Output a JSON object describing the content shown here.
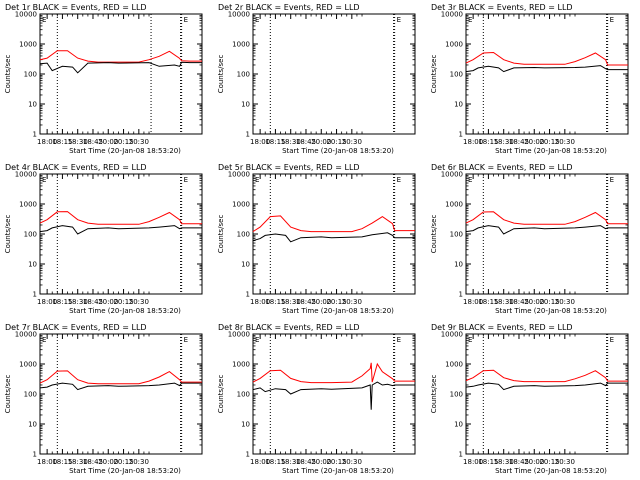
{
  "colors": {
    "events": "#000000",
    "lld": "#ff0000",
    "axis": "#000000",
    "background": "#ffffff"
  },
  "chart_data": [
    {
      "type": "line",
      "title": "Det 1r BLACK = Events, RED = LLD",
      "xlabel": "Start Time (20-Jan-08 18:53:20)",
      "ylabel": "Counts/sec",
      "yscale": "log",
      "ylim": [
        1,
        10000
      ],
      "xlim": [
        "17:53",
        "20:32"
      ],
      "x_ticks": [
        "18:00",
        "18:15",
        "18:30",
        "18:45",
        "20:00",
        "20:15",
        "20:30"
      ],
      "y_ticks": [
        "1",
        "10",
        "100",
        "1000",
        "10000"
      ],
      "vlines": [
        "18:10",
        "19:42",
        "20:11",
        "20:12"
      ],
      "marker_label": "E",
      "series": [
        {
          "name": "RED = LLD",
          "color": "#ff0000",
          "x": [
            "17:53",
            "18:00",
            "18:10",
            "18:20",
            "18:30",
            "18:40",
            "18:50",
            "19:00",
            "19:10",
            "19:30",
            "19:40",
            "19:50",
            "20:00",
            "20:10",
            "20:12",
            "20:20",
            "20:32"
          ],
          "y": [
            300,
            340,
            600,
            600,
            340,
            270,
            250,
            250,
            250,
            250,
            300,
            390,
            570,
            330,
            275,
            270,
            270
          ]
        },
        {
          "name": "BLACK = Events",
          "color": "#000000",
          "x": [
            "17:53",
            "18:00",
            "18:05",
            "18:15",
            "18:25",
            "18:30",
            "18:40",
            "19:00",
            "19:10",
            "19:40",
            "19:50",
            "20:05",
            "20:10",
            "20:12",
            "20:20",
            "20:32"
          ],
          "y": [
            220,
            230,
            130,
            180,
            170,
            110,
            230,
            240,
            230,
            240,
            180,
            200,
            180,
            245,
            240,
            240
          ]
        }
      ]
    },
    {
      "type": "line",
      "title": "Det 2r BLACK = Events, RED = LLD",
      "xlabel": "Start Time (20-Jan-08 18:53:20)",
      "ylabel": "Counts/sec",
      "yscale": "log",
      "ylim": [
        1,
        10000
      ],
      "xlim": [
        "17:53",
        "20:32"
      ],
      "x_ticks": [
        "18:00",
        "18:15",
        "18:30",
        "18:45",
        "20:00",
        "20:15",
        "20:30"
      ],
      "y_ticks": [
        "1",
        "10",
        "100",
        "1000",
        "10000"
      ],
      "vlines": [
        "18:10",
        "20:11",
        "20:12"
      ],
      "marker_label": "E",
      "series": []
    },
    {
      "type": "line",
      "title": "Det 3r BLACK = Events, RED = LLD",
      "xlabel": "Start Time (20-Jan-08 18:53:20)",
      "ylabel": "Counts/sec",
      "yscale": "log",
      "ylim": [
        1,
        10000
      ],
      "xlim": [
        "17:53",
        "20:32"
      ],
      "x_ticks": [
        "18:00",
        "18:15",
        "18:30",
        "18:45",
        "20:00",
        "20:15",
        "20:30"
      ],
      "y_ticks": [
        "1",
        "10",
        "100",
        "1000",
        "10000"
      ],
      "vlines": [
        "18:10",
        "20:11",
        "20:12"
      ],
      "marker_label": "E",
      "series": [
        {
          "name": "RED = LLD",
          "color": "#ff0000",
          "x": [
            "17:53",
            "18:00",
            "18:10",
            "18:20",
            "18:30",
            "18:40",
            "18:50",
            "19:00",
            "19:10",
            "19:30",
            "19:40",
            "19:50",
            "20:00",
            "20:10",
            "20:12",
            "20:20",
            "20:32"
          ],
          "y": [
            230,
            300,
            500,
            520,
            300,
            230,
            210,
            210,
            210,
            210,
            260,
            350,
            500,
            300,
            200,
            200,
            200
          ]
        },
        {
          "name": "BLACK = Events",
          "color": "#000000",
          "x": [
            "17:53",
            "18:00",
            "18:05",
            "18:15",
            "18:25",
            "18:30",
            "18:40",
            "19:00",
            "19:10",
            "19:40",
            "19:50",
            "20:05",
            "20:10",
            "20:12",
            "20:20",
            "20:32"
          ],
          "y": [
            120,
            130,
            160,
            180,
            160,
            120,
            160,
            165,
            160,
            165,
            170,
            190,
            150,
            140,
            140,
            140
          ]
        }
      ]
    },
    {
      "type": "line",
      "title": "Det 4r BLACK = Events, RED = LLD",
      "xlabel": "Start Time (20-Jan-08 18:53:20)",
      "ylabel": "Counts/sec",
      "yscale": "log",
      "ylim": [
        1,
        10000
      ],
      "xlim": [
        "17:53",
        "20:32"
      ],
      "x_ticks": [
        "18:00",
        "18:15",
        "18:30",
        "18:45",
        "20:00",
        "20:15",
        "20:30"
      ],
      "y_ticks": [
        "1",
        "10",
        "100",
        "1000",
        "10000"
      ],
      "vlines": [
        "18:10",
        "20:11",
        "20:12"
      ],
      "marker_label": "E",
      "series": [
        {
          "name": "RED = LLD",
          "color": "#ff0000",
          "x": [
            "17:53",
            "18:00",
            "18:10",
            "18:20",
            "18:30",
            "18:40",
            "18:50",
            "19:00",
            "19:10",
            "19:30",
            "19:40",
            "19:50",
            "20:00",
            "20:10",
            "20:12",
            "20:20",
            "20:32"
          ],
          "y": [
            230,
            300,
            550,
            560,
            300,
            230,
            210,
            210,
            210,
            210,
            260,
            360,
            520,
            300,
            220,
            220,
            220
          ]
        },
        {
          "name": "BLACK = Events",
          "color": "#000000",
          "x": [
            "17:53",
            "18:00",
            "18:05",
            "18:15",
            "18:25",
            "18:30",
            "18:40",
            "19:00",
            "19:10",
            "19:40",
            "19:50",
            "20:05",
            "20:10",
            "20:12",
            "20:20",
            "20:32"
          ],
          "y": [
            120,
            130,
            160,
            190,
            170,
            100,
            150,
            160,
            150,
            160,
            170,
            190,
            150,
            160,
            160,
            160
          ]
        }
      ]
    },
    {
      "type": "line",
      "title": "Det 5r BLACK = Events, RED = LLD",
      "xlabel": "Start Time (20-Jan-08 18:53:20)",
      "ylabel": "Counts/sec",
      "yscale": "log",
      "ylim": [
        1,
        10000
      ],
      "xlim": [
        "17:53",
        "20:32"
      ],
      "x_ticks": [
        "18:00",
        "18:15",
        "18:30",
        "18:45",
        "20:00",
        "20:15",
        "20:30"
      ],
      "y_ticks": [
        "1",
        "10",
        "100",
        "1000",
        "10000"
      ],
      "vlines": [
        "18:10",
        "20:11",
        "20:12"
      ],
      "marker_label": "E",
      "series": [
        {
          "name": "RED = LLD",
          "color": "#ff0000",
          "x": [
            "17:53",
            "18:00",
            "18:10",
            "18:20",
            "18:30",
            "18:40",
            "18:50",
            "19:00",
            "19:10",
            "19:30",
            "19:40",
            "19:50",
            "20:00",
            "20:10",
            "20:12",
            "20:20",
            "20:32"
          ],
          "y": [
            120,
            170,
            380,
            400,
            170,
            130,
            120,
            120,
            120,
            120,
            150,
            230,
            380,
            220,
            130,
            130,
            130
          ]
        },
        {
          "name": "BLACK = Events",
          "color": "#000000",
          "x": [
            "17:53",
            "18:00",
            "18:05",
            "18:15",
            "18:25",
            "18:30",
            "18:40",
            "19:00",
            "19:10",
            "19:40",
            "19:50",
            "20:05",
            "20:10",
            "20:12",
            "20:20",
            "20:32"
          ],
          "y": [
            60,
            70,
            90,
            100,
            90,
            55,
            75,
            80,
            75,
            80,
            95,
            110,
            90,
            75,
            75,
            75
          ]
        }
      ]
    },
    {
      "type": "line",
      "title": "Det 6r BLACK = Events, RED = LLD",
      "xlabel": "Start Time (20-Jan-08 18:53:20)",
      "ylabel": "Counts/sec",
      "yscale": "log",
      "ylim": [
        1,
        10000
      ],
      "xlim": [
        "17:53",
        "20:32"
      ],
      "x_ticks": [
        "18:00",
        "18:15",
        "18:30",
        "18:45",
        "20:00",
        "20:15",
        "20:30"
      ],
      "y_ticks": [
        "1",
        "10",
        "100",
        "1000",
        "10000"
      ],
      "vlines": [
        "18:10",
        "20:11",
        "20:12"
      ],
      "marker_label": "E",
      "series": [
        {
          "name": "RED = LLD",
          "color": "#ff0000",
          "x": [
            "17:53",
            "18:00",
            "18:10",
            "18:20",
            "18:30",
            "18:40",
            "18:50",
            "19:00",
            "19:10",
            "19:30",
            "19:40",
            "19:50",
            "20:00",
            "20:10",
            "20:12",
            "20:20",
            "20:32"
          ],
          "y": [
            230,
            300,
            540,
            550,
            300,
            230,
            210,
            210,
            210,
            210,
            260,
            360,
            520,
            300,
            220,
            220,
            220
          ]
        },
        {
          "name": "BLACK = Events",
          "color": "#000000",
          "x": [
            "17:53",
            "18:00",
            "18:05",
            "18:15",
            "18:25",
            "18:30",
            "18:40",
            "19:00",
            "19:10",
            "19:40",
            "19:50",
            "20:05",
            "20:10",
            "20:12",
            "20:20",
            "20:32"
          ],
          "y": [
            120,
            130,
            160,
            190,
            170,
            100,
            150,
            160,
            150,
            160,
            170,
            190,
            150,
            160,
            160,
            160
          ]
        }
      ]
    },
    {
      "type": "line",
      "title": "Det 7r BLACK = Events, RED = LLD",
      "xlabel": "Start Time (20-Jan-08 18:53:20)",
      "ylabel": "Counts/sec",
      "yscale": "log",
      "ylim": [
        1,
        10000
      ],
      "xlim": [
        "17:53",
        "20:32"
      ],
      "x_ticks": [
        "18:00",
        "18:15",
        "18:30",
        "18:45",
        "20:00",
        "20:15",
        "20:30"
      ],
      "y_ticks": [
        "1",
        "10",
        "100",
        "1000",
        "10000"
      ],
      "vlines": [
        "18:10",
        "20:11",
        "20:12"
      ],
      "marker_label": "E",
      "series": [
        {
          "name": "RED = LLD",
          "color": "#ff0000",
          "x": [
            "17:53",
            "18:00",
            "18:10",
            "18:20",
            "18:30",
            "18:40",
            "18:50",
            "19:00",
            "19:10",
            "19:30",
            "19:40",
            "19:50",
            "20:00",
            "20:10",
            "20:12",
            "20:20",
            "20:32"
          ],
          "y": [
            230,
            300,
            580,
            590,
            300,
            230,
            220,
            220,
            220,
            220,
            270,
            370,
            560,
            300,
            250,
            250,
            250
          ]
        },
        {
          "name": "BLACK = Events",
          "color": "#000000",
          "x": [
            "17:53",
            "18:00",
            "18:05",
            "18:15",
            "18:25",
            "18:30",
            "18:40",
            "19:00",
            "19:10",
            "19:40",
            "19:50",
            "20:05",
            "20:10",
            "20:12",
            "20:20",
            "20:32"
          ],
          "y": [
            160,
            170,
            200,
            230,
            210,
            140,
            180,
            190,
            180,
            190,
            200,
            230,
            190,
            230,
            230,
            230
          ]
        }
      ]
    },
    {
      "type": "line",
      "title": "Det 8r BLACK = Events, RED = LLD",
      "xlabel": "Start Time (20-Jan-08 18:53:20)",
      "ylabel": "Counts/sec",
      "yscale": "log",
      "ylim": [
        1,
        10000
      ],
      "xlim": [
        "17:53",
        "20:32"
      ],
      "x_ticks": [
        "18:00",
        "18:15",
        "18:30",
        "18:45",
        "20:00",
        "20:15",
        "20:30"
      ],
      "y_ticks": [
        "1",
        "10",
        "100",
        "1000",
        "10000"
      ],
      "vlines": [
        "18:10",
        "20:11",
        "20:12"
      ],
      "marker_label": "E",
      "series": [
        {
          "name": "RED = LLD",
          "color": "#ff0000",
          "x": [
            "17:53",
            "18:00",
            "18:10",
            "18:20",
            "18:30",
            "18:40",
            "18:50",
            "19:00",
            "19:10",
            "19:30",
            "19:40",
            "19:48",
            "19:49",
            "19:50",
            "19:55",
            "20:00",
            "20:10",
            "20:12",
            "20:20",
            "20:32"
          ],
          "y": [
            250,
            330,
            600,
            620,
            330,
            260,
            240,
            240,
            240,
            250,
            400,
            700,
            1100,
            250,
            1000,
            550,
            320,
            270,
            270,
            270
          ]
        },
        {
          "name": "BLACK = Events",
          "color": "#000000",
          "x": [
            "17:53",
            "18:00",
            "18:05",
            "18:15",
            "18:25",
            "18:30",
            "18:40",
            "19:00",
            "19:10",
            "19:40",
            "19:48",
            "19:49",
            "19:50",
            "19:55",
            "20:00",
            "20:05",
            "20:10",
            "20:12",
            "20:20",
            "20:32"
          ],
          "y": [
            140,
            160,
            120,
            150,
            140,
            100,
            140,
            150,
            145,
            160,
            200,
            30,
            200,
            250,
            200,
            210,
            190,
            200,
            200,
            200
          ]
        }
      ]
    },
    {
      "type": "line",
      "title": "Det 9r BLACK = Events, RED = LLD",
      "xlabel": "Start Time (20-Jan-08 18:53:20)",
      "ylabel": "Counts/sec",
      "yscale": "log",
      "ylim": [
        1,
        10000
      ],
      "xlim": [
        "17:53",
        "20:32"
      ],
      "x_ticks": [
        "18:00",
        "18:15",
        "18:30",
        "18:45",
        "20:00",
        "20:15",
        "20:30"
      ],
      "y_ticks": [
        "1",
        "10",
        "100",
        "1000",
        "10000"
      ],
      "vlines": [
        "18:10",
        "20:11",
        "20:12"
      ],
      "marker_label": "E",
      "series": [
        {
          "name": "RED = LLD",
          "color": "#ff0000",
          "x": [
            "17:53",
            "18:00",
            "18:10",
            "18:20",
            "18:30",
            "18:40",
            "18:50",
            "19:00",
            "19:10",
            "19:30",
            "19:40",
            "19:50",
            "20:00",
            "20:10",
            "20:12",
            "20:20",
            "20:32"
          ],
          "y": [
            280,
            350,
            600,
            620,
            350,
            280,
            260,
            260,
            260,
            260,
            320,
            420,
            600,
            350,
            270,
            270,
            270
          ]
        },
        {
          "name": "BLACK = Events",
          "color": "#000000",
          "x": [
            "17:53",
            "18:00",
            "18:05",
            "18:15",
            "18:25",
            "18:30",
            "18:40",
            "19:00",
            "19:10",
            "19:40",
            "19:50",
            "20:05",
            "20:10",
            "20:12",
            "20:20",
            "20:32"
          ],
          "y": [
            170,
            180,
            200,
            230,
            210,
            140,
            180,
            190,
            180,
            190,
            200,
            230,
            190,
            230,
            230,
            230
          ]
        }
      ]
    }
  ]
}
